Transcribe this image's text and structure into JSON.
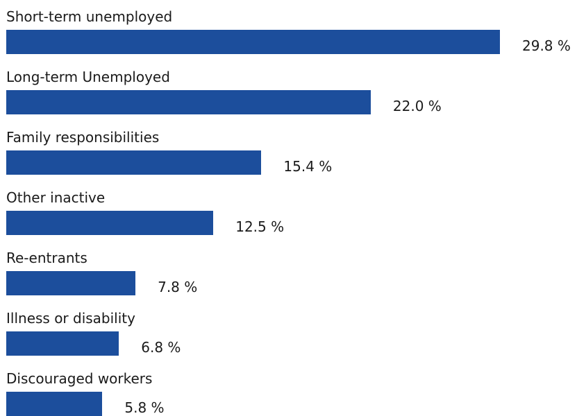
{
  "chart_data": {
    "type": "bar",
    "orientation": "horizontal",
    "categories": [
      "Short-term unemployed",
      "Long-term Unemployed",
      "Family responsibilities",
      "Other inactive",
      "Re-entrants",
      "Illness or disability",
      "Discouraged workers"
    ],
    "values": [
      29.8,
      22.0,
      15.4,
      12.5,
      7.8,
      6.8,
      5.8
    ],
    "value_labels": [
      "29.8 %",
      "22.0 %",
      "15.4 %",
      "12.5 %",
      "7.8 %",
      "6.8 %",
      "5.8 %"
    ],
    "unit": "%",
    "bar_color": "#1c4e9c",
    "grid": false,
    "legend": "none"
  }
}
